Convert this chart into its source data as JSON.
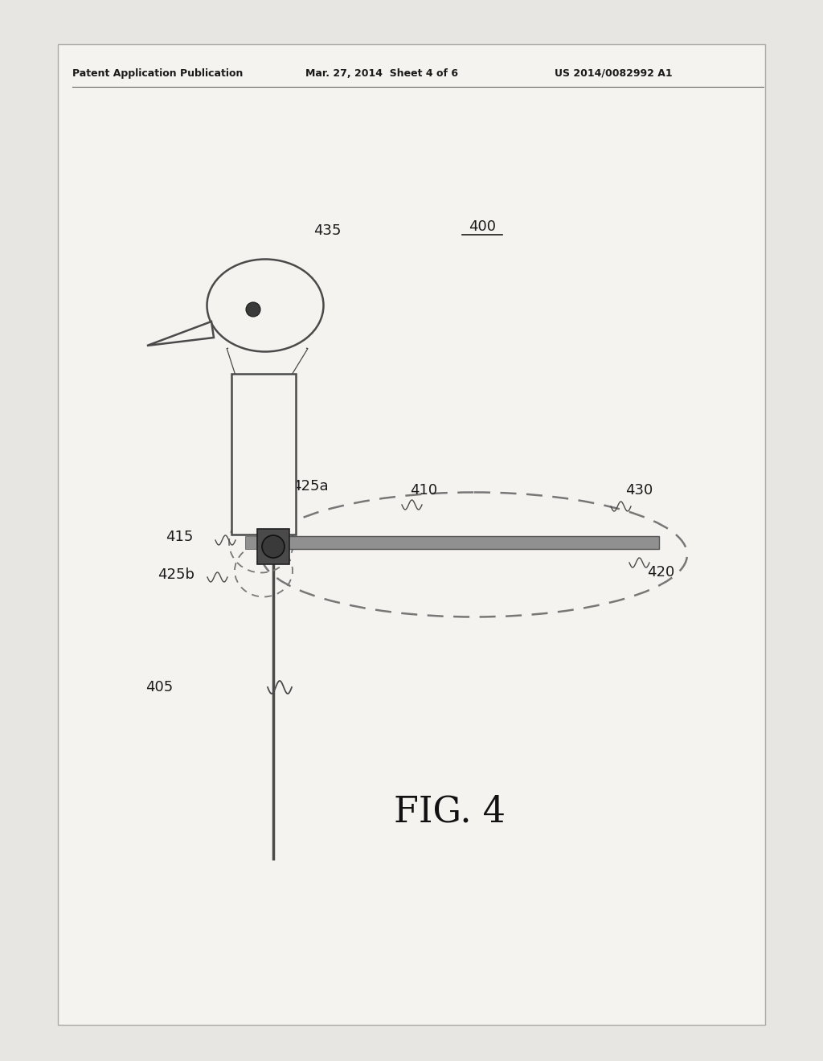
{
  "bg_color": "#ffffff",
  "page_bg": "#e8e6e3",
  "header_text1": "Patent Application Publication",
  "header_text2": "Mar. 27, 2014  Sheet 4 of 6",
  "header_text3": "US 2014/0082992 A1",
  "fig_label": "FIG. 4",
  "label_400": "400",
  "label_405": "405",
  "label_410": "410",
  "label_415": "415",
  "label_420": "420",
  "label_425a": "425a",
  "label_425b": "425b",
  "label_430": "430",
  "label_435": "435",
  "line_color": "#4a4a4a",
  "dark_color": "#333333",
  "arm_color": "#888888",
  "dashed_color": "#666666",
  "hub_color": "#555555"
}
